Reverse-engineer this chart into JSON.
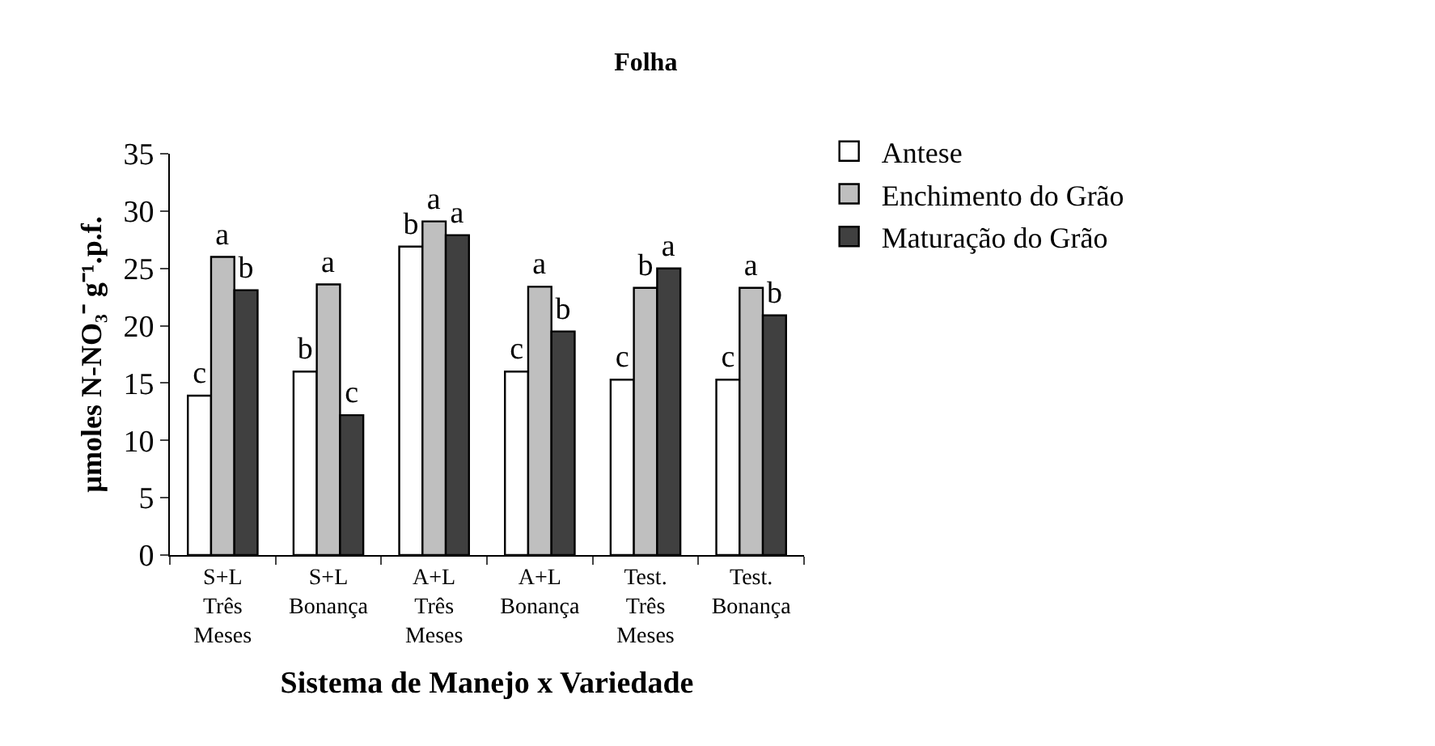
{
  "chart_data": {
    "type": "bar",
    "title": "Folha",
    "xlabel": "Sistema de Manejo x Variedade",
    "ylabel": "µmoles N-NO₃⁻ g⁻¹.p.f.",
    "categories": [
      "S+L Três Meses",
      "S+L Bonança",
      "A+L Três Meses",
      "A+L Bonança",
      "Test. Três Meses",
      "Test. Bonança"
    ],
    "series": [
      {
        "name": "Antese",
        "color": "#ffffff",
        "values": [
          13.9,
          16,
          26.9,
          16,
          15.3,
          15.3
        ],
        "value_labels": [
          "c",
          "b",
          "b",
          "c",
          "c",
          "c"
        ]
      },
      {
        "name": "Enchimento do Grão",
        "color": "#bfbfbf",
        "values": [
          26,
          23.6,
          29.1,
          23.4,
          23.3,
          23.3
        ],
        "value_labels": [
          "a",
          "a",
          "a",
          "a",
          "b",
          "a"
        ]
      },
      {
        "name": "Maturação do Grão",
        "color": "#404040",
        "values": [
          23.1,
          12.2,
          27.9,
          19.5,
          25,
          20.9
        ],
        "value_labels": [
          "b",
          "c",
          "a",
          "b",
          "a",
          "b"
        ]
      }
    ],
    "ylim": [
      0,
      35
    ],
    "yticks": [
      0,
      5,
      10,
      15,
      20,
      25,
      30,
      35
    ],
    "legend": "top right"
  }
}
